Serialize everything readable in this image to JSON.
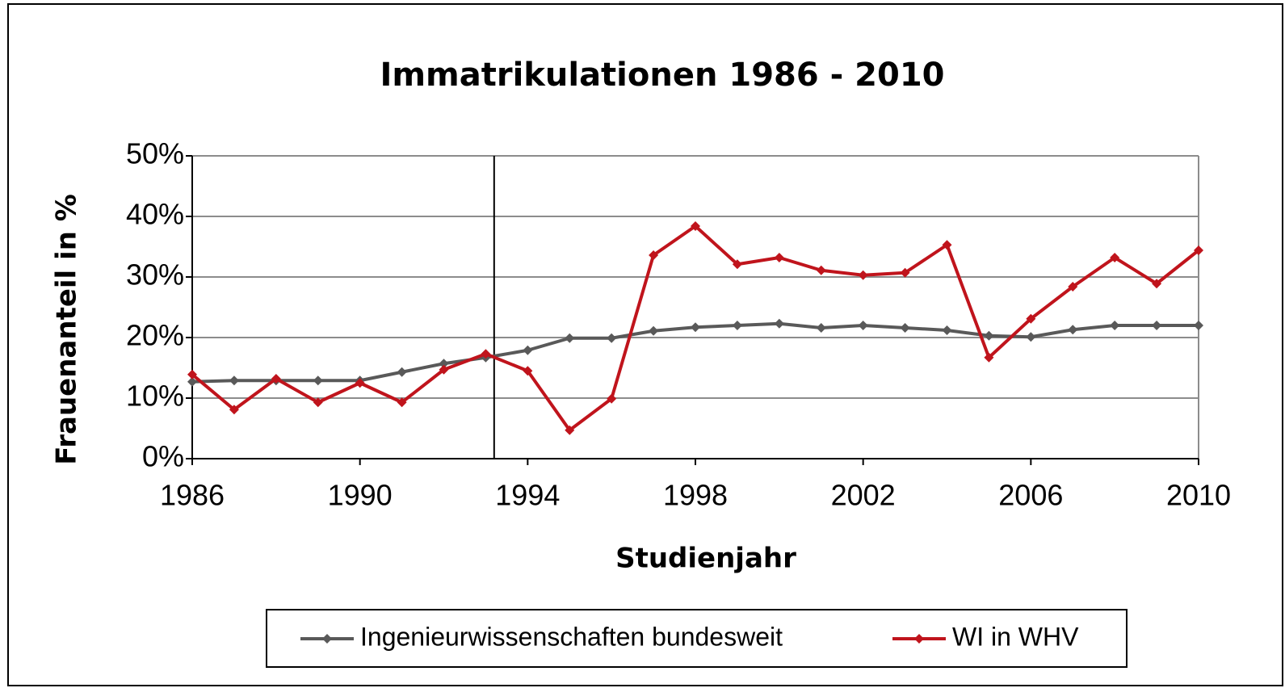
{
  "chart_data": {
    "type": "line",
    "title": "Immatrikulationen 1986 - 2010",
    "x_label": "Studienjahr",
    "y_label": "Frauenanteil in %",
    "x": [
      1986,
      1987,
      1988,
      1989,
      1990,
      1991,
      1992,
      1993,
      1994,
      1995,
      1996,
      1997,
      1998,
      1999,
      2000,
      2001,
      2002,
      2003,
      2004,
      2005,
      2006,
      2007,
      2008,
      2009,
      2010
    ],
    "series": [
      {
        "name": "Ingenieurwissenschaften bundesweit",
        "color": "#595959",
        "values": [
          12.7,
          12.9,
          12.9,
          12.9,
          12.9,
          14.3,
          15.7,
          16.7,
          17.9,
          19.9,
          19.9,
          21.1,
          21.7,
          22.0,
          22.3,
          21.6,
          22.0,
          21.6,
          21.2,
          20.3,
          20.1,
          21.3,
          22.0,
          22.0,
          22.0
        ]
      },
      {
        "name": "WI in WHV",
        "color": "#c0141c",
        "values": [
          13.9,
          8.1,
          13.2,
          9.3,
          12.5,
          9.3,
          14.7,
          17.3,
          14.5,
          4.7,
          9.9,
          33.6,
          38.4,
          32.1,
          33.2,
          31.1,
          30.3,
          30.7,
          35.3,
          16.7,
          23.1,
          28.4,
          33.2,
          28.9,
          34.4
        ]
      }
    ],
    "reference_line_x": 1993.2,
    "xlim": [
      1986,
      2010
    ],
    "xticks": [
      1986,
      1990,
      1994,
      1998,
      2002,
      2006,
      2010
    ],
    "ylim": [
      0,
      50
    ],
    "yticks": [
      {
        "value": 0,
        "label": "0%"
      },
      {
        "value": 10,
        "label": "10%"
      },
      {
        "value": 20,
        "label": "20%"
      },
      {
        "value": 30,
        "label": "30%"
      },
      {
        "value": 40,
        "label": "40%"
      },
      {
        "value": 50,
        "label": "50%"
      }
    ],
    "grid": true,
    "legend": "bottom"
  }
}
